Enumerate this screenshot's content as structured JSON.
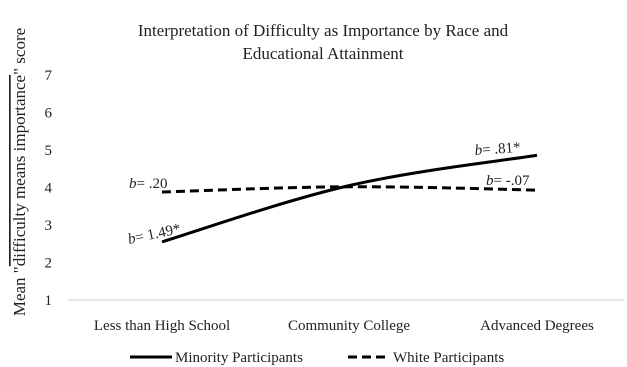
{
  "chart_data": {
    "type": "line",
    "title_lines": [
      "Interpretation of Difficulty as Importance by Race and",
      "Educational Attainment"
    ],
    "ylabel_prefix": "Mean \"",
    "ylabel_overlined": "difficulty means importance",
    "ylabel_suffix": "\" score",
    "xlabel": "",
    "categories": [
      "Less than High School",
      "Community College",
      "Advanced Degrees"
    ],
    "yticks": [
      "1",
      "2",
      "3",
      "4",
      "5",
      "6",
      "7"
    ],
    "ylim": [
      1,
      7
    ],
    "grid": false,
    "legend_position": "bottom",
    "series": [
      {
        "name": "Minority Participants",
        "style": "solid",
        "color": "#000000",
        "values": [
          2.55,
          4.05,
          4.86
        ]
      },
      {
        "name": "White Participants",
        "style": "dashed",
        "color": "#000000",
        "values": [
          3.88,
          4.02,
          3.93
        ]
      }
    ],
    "annotations": [
      {
        "prefix": "b",
        "text": "= .20"
      },
      {
        "prefix": "b",
        "text": "= 1.49*"
      },
      {
        "prefix": "b",
        "text": "= .81*"
      },
      {
        "prefix": "b",
        "text": "= -.07"
      }
    ]
  }
}
